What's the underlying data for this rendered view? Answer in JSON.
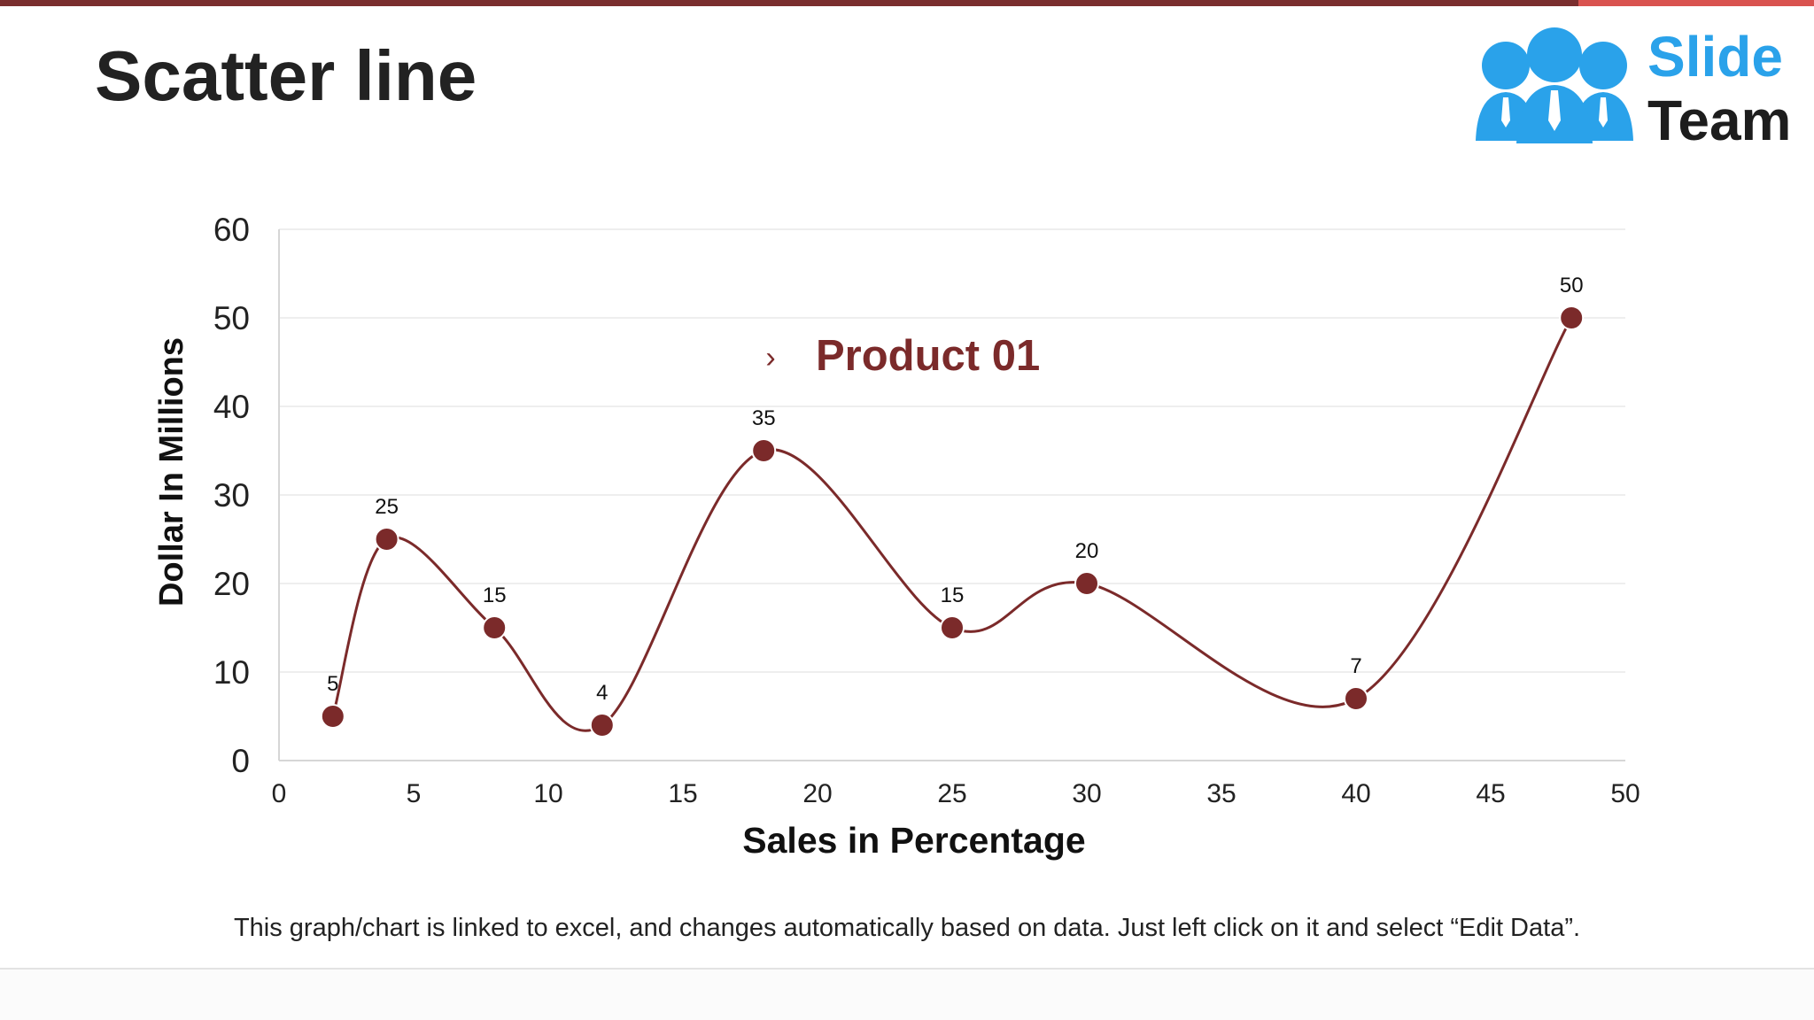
{
  "slide": {
    "title": "Scatter line",
    "footnote": "This graph/chart is linked to excel, and changes automatically based on data. Just left click on it and select “Edit Data”."
  },
  "logo": {
    "word1": "Slide",
    "word2": "Team",
    "icon": "team-people-icon"
  },
  "colors": {
    "series": "#7b2a2a",
    "accent_bar": "#7a2e2e",
    "logo_blue": "#2aa2ea"
  },
  "chart_data": {
    "type": "scatter",
    "title": "",
    "xlabel": "Sales in Percentage",
    "ylabel": "Dollar In Millions",
    "xlim": [
      0,
      50
    ],
    "ylim": [
      0,
      60
    ],
    "xticks": [
      0,
      5,
      10,
      15,
      20,
      25,
      30,
      35,
      40,
      45,
      50
    ],
    "yticks": [
      0,
      10,
      20,
      30,
      40,
      50,
      60
    ],
    "grid": true,
    "smooth_line": true,
    "legend": {
      "placement": "inside-top-center",
      "marker": "›"
    },
    "series": [
      {
        "name": "Product 01",
        "color": "#7b2a2a",
        "points": [
          {
            "x": 2,
            "y": 5
          },
          {
            "x": 4,
            "y": 25
          },
          {
            "x": 8,
            "y": 15
          },
          {
            "x": 12,
            "y": 4
          },
          {
            "x": 18,
            "y": 35
          },
          {
            "x": 25,
            "y": 15
          },
          {
            "x": 30,
            "y": 20
          },
          {
            "x": 40,
            "y": 7
          },
          {
            "x": 48,
            "y": 50
          }
        ]
      }
    ]
  }
}
